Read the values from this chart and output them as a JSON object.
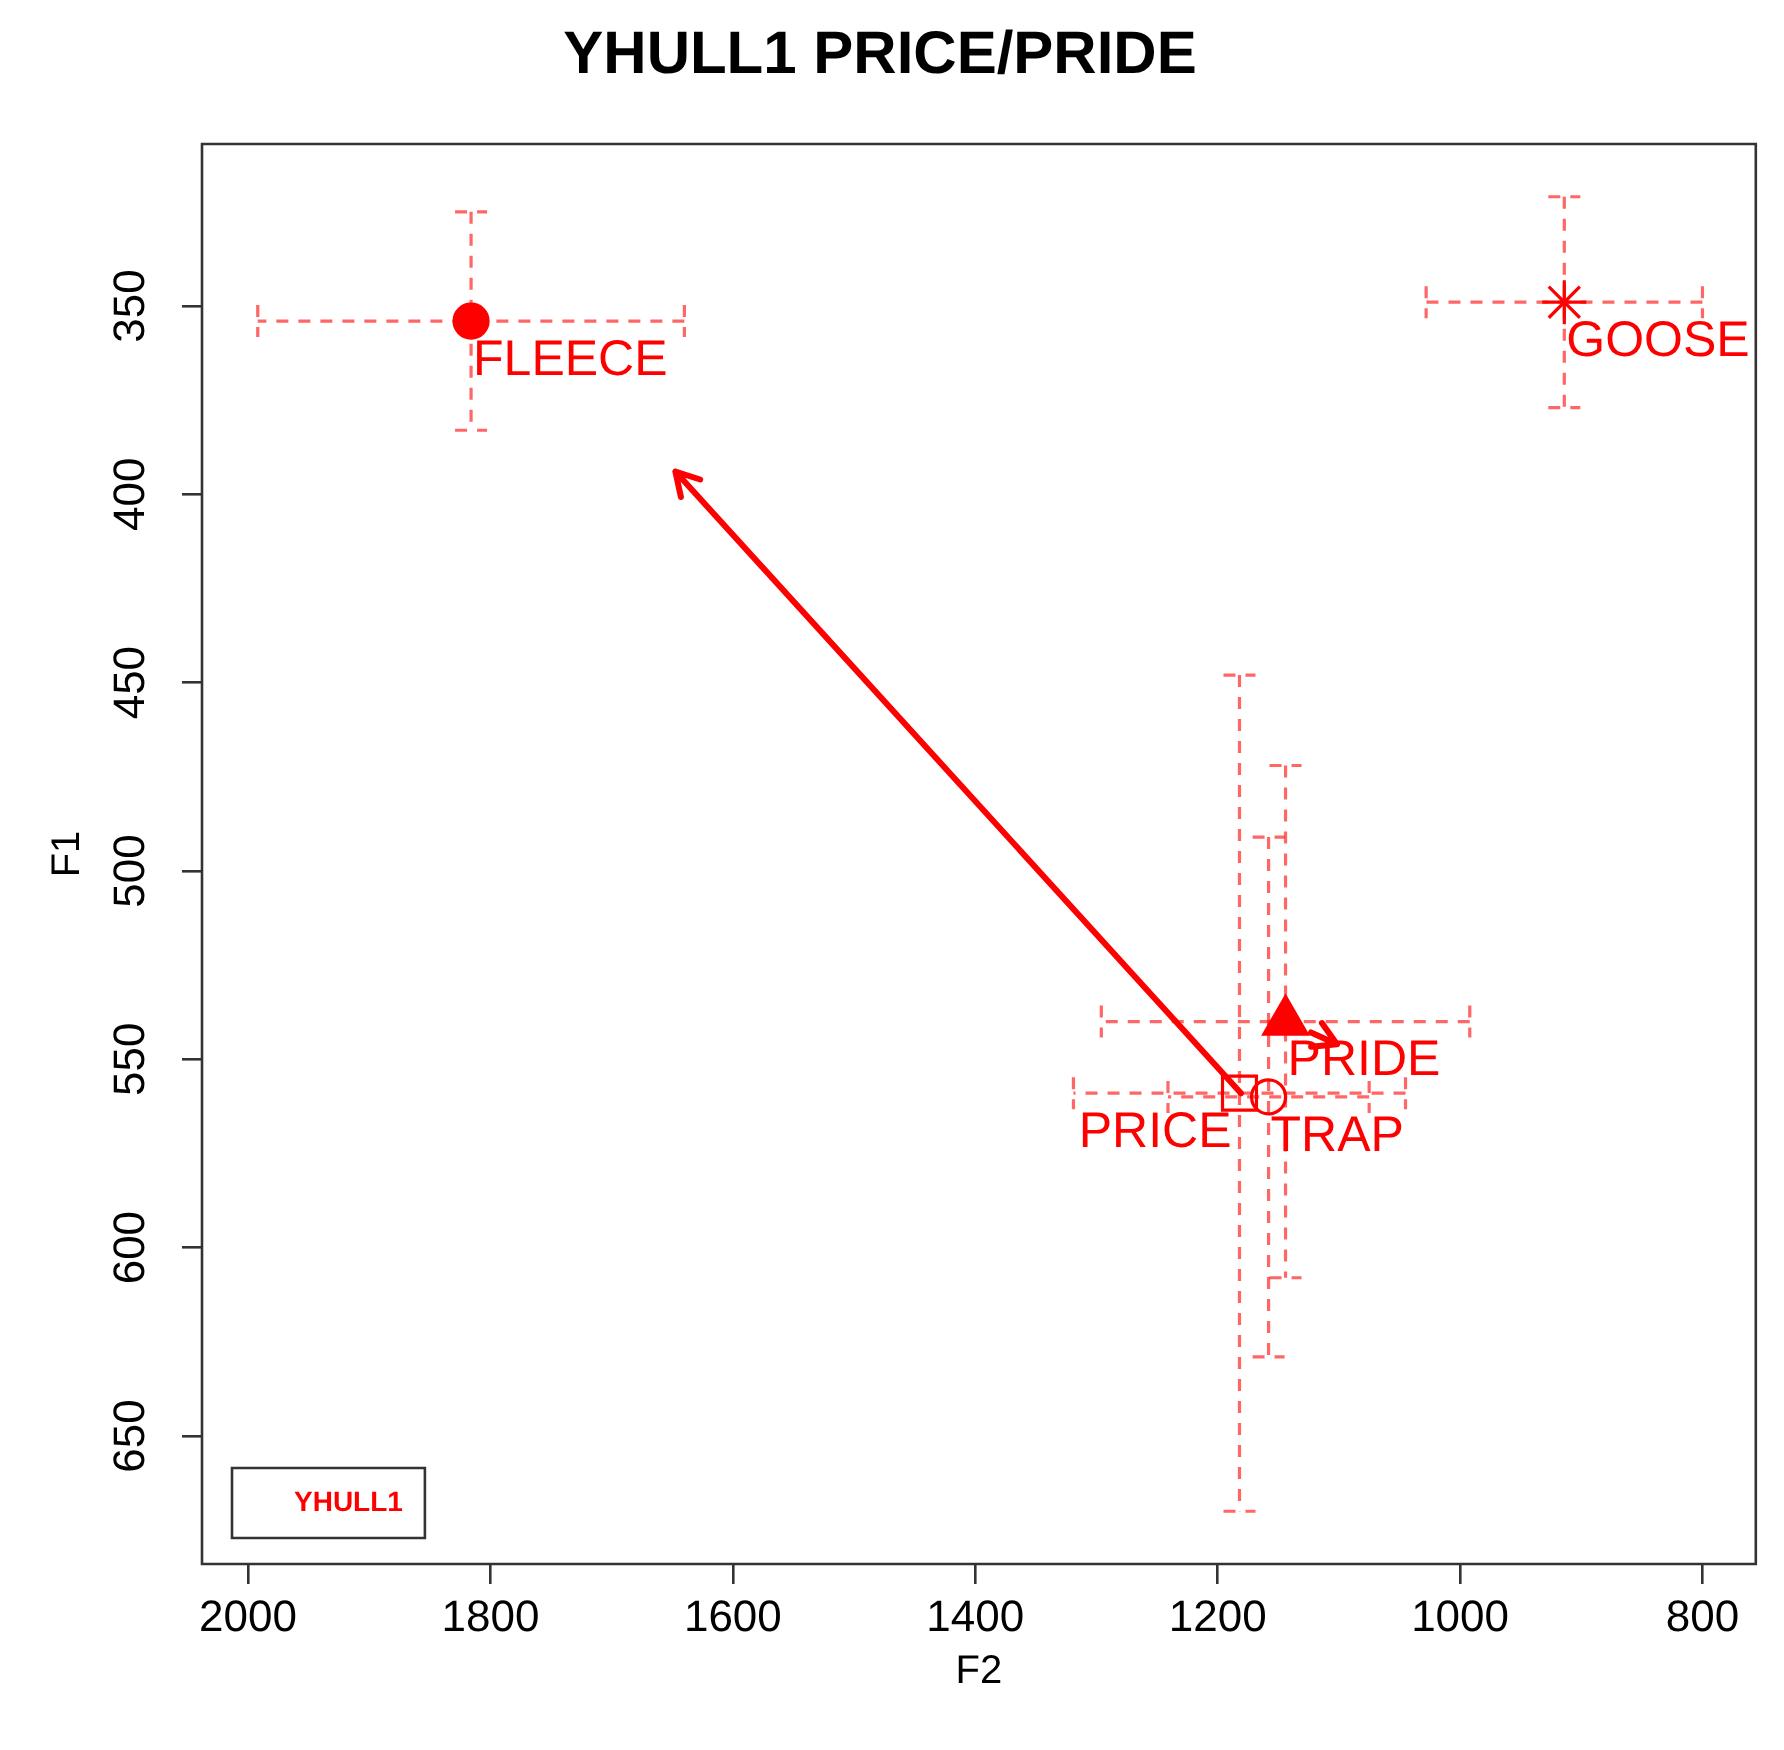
{
  "chart_data": {
    "type": "scatter",
    "title": "YHULL1 PRICE/PRIDE",
    "xlabel": "F2",
    "ylabel": "F1",
    "legend_title": "YHULL1",
    "xlim": [
      2038,
      756
    ],
    "xticks": [
      2000,
      1800,
      1600,
      1400,
      1200,
      1000,
      800
    ],
    "ylim": [
      684,
      307
    ],
    "yticks": [
      350,
      400,
      450,
      500,
      550,
      600,
      650
    ],
    "series": [
      {
        "color": "#ff0000",
        "marker": "circle",
        "x": [
          1816
        ],
        "values": [
          354
        ],
        "errors": [
          29
        ],
        "xerrors": [
          176
        ]
      },
      {
        "color": "#ff0000",
        "marker": "cross",
        "x": [
          914
        ],
        "values": [
          349
        ],
        "errors": [
          28
        ],
        "xerrors": [
          114
        ]
      },
      {
        "color": "#ff0000",
        "marker": "triangle",
        "x": [
          1144
        ],
        "values": [
          540
        ],
        "errors": [
          68
        ],
        "xerrors": [
          152
        ]
      },
      {
        "color": "#ff0000",
        "marker": "square",
        "x": [
          1182
        ],
        "values": [
          559
        ],
        "errors": [
          111
        ],
        "xerrors": [
          137
        ]
      },
      {
        "color": "#ff0000",
        "marker": "circle",
        "x": [
          1158
        ],
        "values": [
          560
        ],
        "errors": [
          69
        ],
        "xerrors": [
          83
        ]
      }
    ],
    "annotations": [
      {
        "text": "FLEECE",
        "x": 1816,
        "y": 354
      },
      {
        "text": "GOOSE",
        "x": 914,
        "y": 349
      },
      {
        "text": "PRIDE",
        "x": 1144,
        "y": 540
      },
      {
        "text": "PRICE",
        "x": 1182,
        "y": 559
      },
      {
        "text": "TRAP",
        "x": 1158,
        "y": 560
      }
    ]
  }
}
